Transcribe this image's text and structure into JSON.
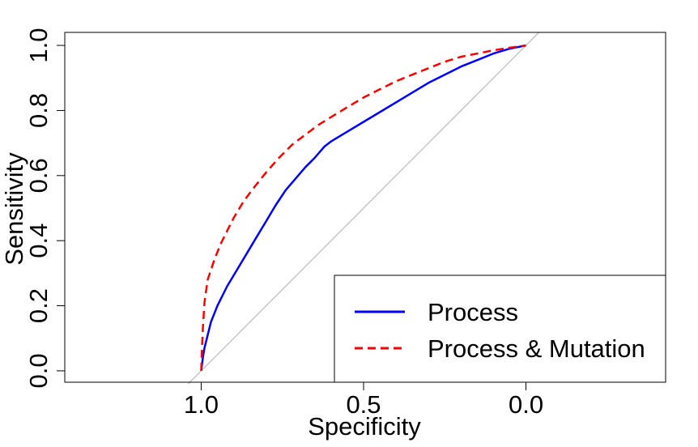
{
  "chart_data": {
    "type": "line",
    "title": "",
    "xlabel": "Specificity",
    "ylabel": "Sensitivity",
    "x_reversed": true,
    "xlim": [
      1.42,
      -0.43
    ],
    "ylim": [
      -0.035,
      1.04
    ],
    "xticks": [
      1.0,
      0.5,
      0.0
    ],
    "xtick_labels": [
      "1.0",
      "0.5",
      "0.0"
    ],
    "yticks": [
      0.0,
      0.2,
      0.4,
      0.6,
      0.8,
      1.0
    ],
    "ytick_labels": [
      "0.0",
      "0.2",
      "0.4",
      "0.6",
      "0.8",
      "1.0"
    ],
    "grid": false,
    "legend_position": "bottom-right",
    "reference_line": {
      "color": "#bebebe",
      "x": [
        1.04,
        -0.04
      ],
      "y": [
        -0.04,
        1.04
      ]
    },
    "series": [
      {
        "name": "Process",
        "color": "#0000ff",
        "dash": "solid",
        "x": [
          1.0,
          0.995,
          0.99,
          0.98,
          0.97,
          0.95,
          0.92,
          0.89,
          0.86,
          0.83,
          0.8,
          0.77,
          0.74,
          0.71,
          0.68,
          0.65,
          0.62,
          0.6,
          0.55,
          0.5,
          0.45,
          0.4,
          0.35,
          0.3,
          0.25,
          0.2,
          0.15,
          0.1,
          0.05,
          0.0
        ],
        "y": [
          0.0,
          0.04,
          0.07,
          0.11,
          0.15,
          0.2,
          0.26,
          0.31,
          0.36,
          0.41,
          0.46,
          0.51,
          0.555,
          0.59,
          0.625,
          0.655,
          0.69,
          0.705,
          0.735,
          0.765,
          0.795,
          0.825,
          0.855,
          0.885,
          0.91,
          0.935,
          0.955,
          0.975,
          0.99,
          1.0
        ]
      },
      {
        "name": "Process & Mutation",
        "color": "#ff0000",
        "dash": "dashed",
        "x": [
          1.0,
          0.998,
          0.995,
          0.99,
          0.98,
          0.96,
          0.94,
          0.92,
          0.9,
          0.87,
          0.84,
          0.8,
          0.76,
          0.72,
          0.68,
          0.64,
          0.6,
          0.55,
          0.5,
          0.45,
          0.4,
          0.35,
          0.3,
          0.25,
          0.2,
          0.15,
          0.1,
          0.05,
          0.0
        ],
        "y": [
          0.0,
          0.06,
          0.13,
          0.21,
          0.28,
          0.34,
          0.39,
          0.43,
          0.47,
          0.52,
          0.56,
          0.61,
          0.655,
          0.695,
          0.725,
          0.755,
          0.78,
          0.81,
          0.84,
          0.865,
          0.89,
          0.91,
          0.93,
          0.95,
          0.965,
          0.975,
          0.985,
          0.993,
          1.0
        ]
      }
    ]
  }
}
